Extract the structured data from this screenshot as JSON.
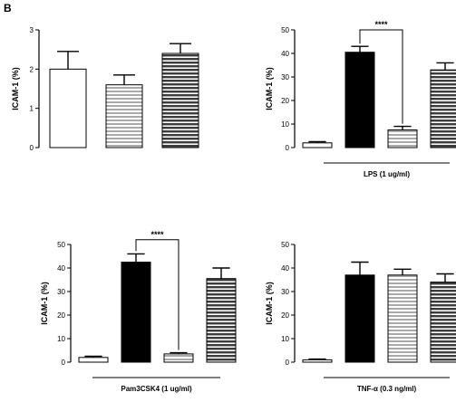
{
  "figure": {
    "panel_letter": "B"
  },
  "colors": {
    "axis": "#000000",
    "stripe_light": "#c8c8c8",
    "stripe_dark": "#4a4a4a",
    "black_bar": "#000000",
    "white_bar": "#ffffff"
  },
  "bar_styles": [
    "white",
    "black",
    "stripe-light",
    "stripe-dark"
  ],
  "chart_data": [
    {
      "type": "bar",
      "title": "",
      "ylabel": "ICAM-1 (%)",
      "xlabel": "",
      "ylim": [
        0,
        3
      ],
      "yticks": [
        "0",
        "1",
        "2",
        "3"
      ],
      "bars": [
        {
          "style": "white",
          "value": 2.0,
          "error": 0.45
        },
        {
          "style": "stripe-light",
          "value": 1.6,
          "error": 0.25
        },
        {
          "style": "stripe-dark",
          "value": 2.4,
          "error": 0.25
        }
      ],
      "treatment_label": "",
      "significance": null
    },
    {
      "type": "bar",
      "title": "",
      "ylabel": "ICAM-1 (%)",
      "xlabel": "",
      "ylim": [
        0,
        50
      ],
      "yticks": [
        "0",
        "10",
        "20",
        "30",
        "40",
        "50"
      ],
      "bars": [
        {
          "style": "white",
          "value": 2.0,
          "error": 0.5
        },
        {
          "style": "black",
          "value": 40.5,
          "error": 2.5
        },
        {
          "style": "stripe-light",
          "value": 7.5,
          "error": 1.5
        },
        {
          "style": "stripe-dark",
          "value": 33.0,
          "error": 3.0
        }
      ],
      "treatment_label": "LPS (1 ug/ml)",
      "significance": {
        "from": 1,
        "to": 2,
        "label": "****",
        "y": 50
      }
    },
    {
      "type": "bar",
      "title": "",
      "ylabel": "ICAM-1 (%)",
      "xlabel": "",
      "ylim": [
        0,
        50
      ],
      "yticks": [
        "0",
        "10",
        "20",
        "30",
        "40",
        "50"
      ],
      "bars": [
        {
          "style": "white",
          "value": 2.0,
          "error": 0.5
        },
        {
          "style": "black",
          "value": 42.5,
          "error": 3.5
        },
        {
          "style": "stripe-light",
          "value": 3.5,
          "error": 0.5
        },
        {
          "style": "stripe-dark",
          "value": 35.5,
          "error": 4.5
        }
      ],
      "treatment_label": "Pam3CSK4 (1 ug/ml)",
      "significance": {
        "from": 1,
        "to": 2,
        "label": "****",
        "y": 52
      }
    },
    {
      "type": "bar",
      "title": "",
      "ylabel": "ICAM-1 (%)",
      "xlabel": "",
      "ylim": [
        0,
        50
      ],
      "yticks": [
        "0",
        "10",
        "20",
        "30",
        "40",
        "50"
      ],
      "bars": [
        {
          "style": "white",
          "value": 1.0,
          "error": 0.3
        },
        {
          "style": "black",
          "value": 37.0,
          "error": 5.5
        },
        {
          "style": "stripe-light",
          "value": 37.0,
          "error": 2.5
        },
        {
          "style": "stripe-dark",
          "value": 34.0,
          "error": 3.5
        }
      ],
      "treatment_label": "TNF-α (0.3 ng/ml)",
      "significance": null
    }
  ]
}
